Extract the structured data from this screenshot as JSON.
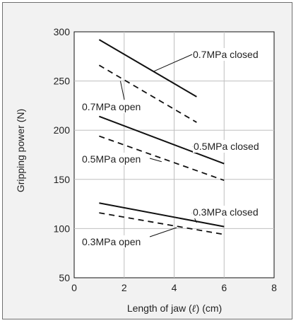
{
  "chart_data": {
    "type": "line",
    "xlabel": "Length of jaw (",
    "xlabel_symbol": "ℓ",
    "xlabel_suffix": ") (cm)",
    "ylabel": "Gripping power (N)",
    "xlim": [
      0,
      8
    ],
    "ylim": [
      50,
      300
    ],
    "x_ticks": [
      0,
      2,
      4,
      6,
      8
    ],
    "y_ticks": [
      50,
      100,
      150,
      200,
      250,
      300
    ],
    "grid": true,
    "colors": {
      "panel_background": "#f2f2f2",
      "plot_background": "#ffffff",
      "line": "#111111",
      "grid": "#bfbfbf"
    },
    "series": [
      {
        "name": "0.7MPa closed",
        "style": "solid",
        "x": [
          1,
          4.9
        ],
        "y": [
          292,
          234
        ]
      },
      {
        "name": "0.7MPa open",
        "style": "dashed",
        "x": [
          1,
          4.9
        ],
        "y": [
          266,
          208
        ]
      },
      {
        "name": "0.5MPa closed",
        "style": "solid",
        "x": [
          1,
          6
        ],
        "y": [
          214,
          166
        ]
      },
      {
        "name": "0.5MPa open",
        "style": "dashed",
        "x": [
          1,
          6
        ],
        "y": [
          194,
          149
        ]
      },
      {
        "name": "0.3MPa closed",
        "style": "solid",
        "x": [
          1,
          6
        ],
        "y": [
          126,
          102
        ]
      },
      {
        "name": "0.3MPa open",
        "style": "dashed",
        "x": [
          1,
          6
        ],
        "y": [
          116,
          94
        ]
      }
    ],
    "annotations": [
      {
        "text": "0.7MPa closed",
        "series": "0.7MPa closed",
        "point": [
          3.2,
          260
        ]
      },
      {
        "text": "0.7MPa open",
        "series": "0.7MPa open",
        "point": [
          1.85,
          250
        ]
      },
      {
        "text": "0.5MPa closed",
        "series": "0.5MPa closed",
        "point": [
          4.9,
          177
        ]
      },
      {
        "text": "0.5MPa open",
        "series": "0.5MPa open",
        "point": [
          3.5,
          168
        ]
      },
      {
        "text": "0.3MPa closed",
        "series": "0.3MPa closed",
        "point": [
          4.9,
          106
        ]
      },
      {
        "text": "0.3MPa open",
        "series": "0.3MPa open",
        "point": [
          4.1,
          101
        ]
      }
    ]
  }
}
